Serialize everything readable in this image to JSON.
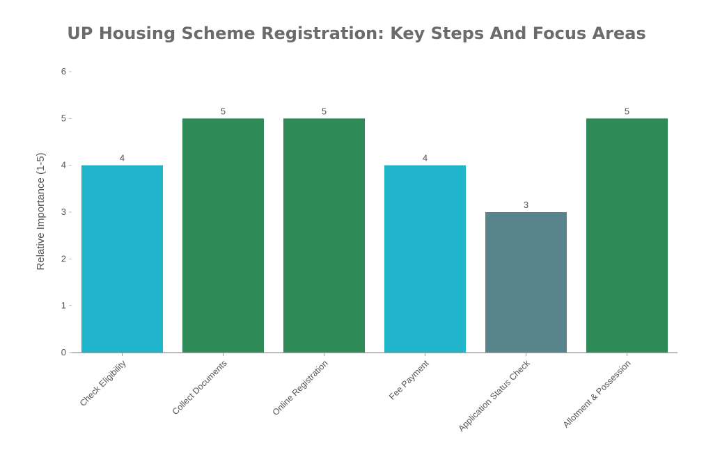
{
  "chart_data": {
    "type": "bar",
    "title": "UP Housing Scheme Registration: Key Steps And Focus Areas",
    "xlabel": "",
    "ylabel": "Relative Importance (1-5)",
    "ylim": [
      0,
      6
    ],
    "yticks": [
      "0",
      "1",
      "2",
      "3",
      "4",
      "5",
      "6"
    ],
    "categories": [
      "Check Eligibility",
      "Collect Documents",
      "Online Registration",
      "Fee Payment",
      "Application Status Check",
      "Allotment & Possession"
    ],
    "values": [
      4,
      5,
      5,
      4,
      3,
      5
    ],
    "data_labels": [
      "4",
      "5",
      "5",
      "4",
      "3",
      "5"
    ],
    "colors": [
      "#21b5cc",
      "#2e8b57",
      "#2e8b57",
      "#21b5cc",
      "#5a848c",
      "#2e8b57"
    ],
    "grid": false,
    "legend": "none"
  }
}
